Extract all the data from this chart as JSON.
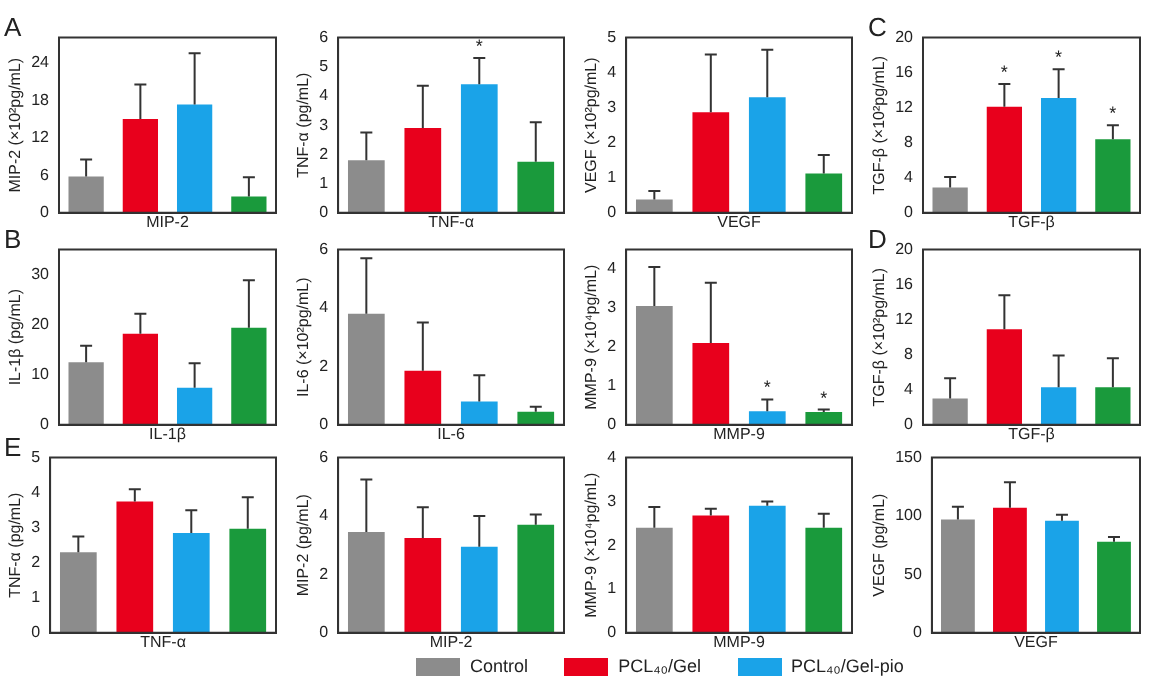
{
  "chart_data": [
    {
      "type": "bar",
      "annotations": [
        "A"
      ],
      "ylabel": "MIP-2 (×10²pg/mL)",
      "xlabel": "MIP-2",
      "categories": [
        null,
        null,
        null,
        null
      ],
      "ylim": [
        0,
        28
      ],
      "yticks": [
        0,
        6,
        12,
        18,
        24
      ],
      "grid": false,
      "series": [
        {
          "color": "#8c8c8c",
          "values": [
            5.8,
            null,
            null,
            null
          ],
          "errors": [
            [
              5.8,
              8.5
            ],
            null,
            null,
            null
          ]
        },
        {
          "color": "#e8001c",
          "values": [
            null,
            15,
            null,
            null
          ],
          "errors": [
            null,
            [
              15,
              20.5
            ],
            null,
            null
          ]
        },
        {
          "color": "#1aa3e8",
          "values": [
            null,
            null,
            17.3,
            null
          ],
          "errors": [
            null,
            null,
            [
              17.3,
              25.5
            ],
            null
          ]
        },
        {
          "color": "#1a9a3c",
          "values": [
            null,
            null,
            null,
            2.6
          ],
          "errors": [
            null,
            null,
            null,
            [
              2.6,
              5.7
            ]
          ]
        }
      ]
    },
    {
      "type": "bar",
      "ylabel": "TNF-α (pg/mL)",
      "xlabel": "TNF-α",
      "categories": [
        null,
        null,
        null,
        null
      ],
      "ylim": [
        0,
        6
      ],
      "yticks": [
        0,
        1,
        2,
        3,
        4,
        5,
        6
      ],
      "grid": false,
      "series": [
        {
          "color": "#8c8c8c",
          "values": [
            1.8,
            null,
            null,
            null
          ],
          "errors": [
            [
              1.8,
              2.75
            ],
            null,
            null,
            null
          ]
        },
        {
          "color": "#e8001c",
          "values": [
            null,
            2.9,
            null,
            null
          ],
          "errors": [
            null,
            [
              2.9,
              4.35
            ],
            null,
            null
          ]
        },
        {
          "color": "#1aa3e8",
          "values": [
            null,
            null,
            4.4,
            null
          ],
          "errors": [
            null,
            null,
            [
              4.4,
              5.3
            ],
            null
          ],
          "value_labels": [
            null,
            null,
            "*",
            null
          ]
        },
        {
          "color": "#1a9a3c",
          "values": [
            null,
            null,
            null,
            1.75
          ],
          "errors": [
            null,
            null,
            null,
            [
              1.75,
              3.1
            ]
          ]
        }
      ]
    },
    {
      "type": "bar",
      "ylabel": "VEGF (×10²pg/mL)",
      "xlabel": "VEGF",
      "categories": [
        null,
        null,
        null,
        null
      ],
      "ylim": [
        0,
        5
      ],
      "yticks": [
        0,
        1,
        2,
        3,
        4,
        5
      ],
      "grid": false,
      "series": [
        {
          "color": "#8c8c8c",
          "values": [
            0.38,
            null,
            null,
            null
          ],
          "errors": [
            [
              0.38,
              0.62
            ],
            null,
            null,
            null
          ]
        },
        {
          "color": "#e8001c",
          "values": [
            null,
            2.87,
            null,
            null
          ],
          "errors": [
            null,
            [
              2.87,
              4.52
            ],
            null,
            null
          ]
        },
        {
          "color": "#1aa3e8",
          "values": [
            null,
            null,
            3.3,
            null
          ],
          "errors": [
            null,
            null,
            [
              3.3,
              4.65
            ],
            null
          ]
        },
        {
          "color": "#1a9a3c",
          "values": [
            null,
            null,
            null,
            1.12
          ],
          "errors": [
            null,
            null,
            null,
            [
              1.12,
              1.65
            ]
          ]
        }
      ]
    },
    {
      "type": "bar",
      "annotations": [
        "C"
      ],
      "ylabel": "TGF-β (×10²pg/mL)",
      "xlabel": "TGF-β",
      "categories": [
        null,
        null,
        null,
        null
      ],
      "ylim": [
        0,
        20
      ],
      "yticks": [
        0,
        4,
        8,
        12,
        16,
        20
      ],
      "grid": false,
      "series": [
        {
          "color": "#8c8c8c",
          "values": [
            2.9,
            null,
            null,
            null
          ],
          "errors": [
            [
              2.9,
              4.1
            ],
            null,
            null,
            null
          ]
        },
        {
          "color": "#e8001c",
          "values": [
            null,
            12.1,
            null,
            null
          ],
          "errors": [
            null,
            [
              12.1,
              14.7
            ],
            null,
            null
          ],
          "value_labels": [
            null,
            "*",
            null,
            null
          ]
        },
        {
          "color": "#1aa3e8",
          "values": [
            null,
            null,
            13.1,
            null
          ],
          "errors": [
            null,
            null,
            [
              13.1,
              16.4
            ],
            null
          ],
          "value_labels": [
            null,
            null,
            "*",
            null
          ]
        },
        {
          "color": "#1a9a3c",
          "values": [
            null,
            null,
            null,
            8.4
          ],
          "errors": [
            null,
            null,
            null,
            [
              8.4,
              10
            ]
          ],
          "value_labels": [
            null,
            null,
            null,
            "*"
          ]
        }
      ]
    },
    {
      "type": "bar",
      "annotations": [
        "B"
      ],
      "ylabel": "IL-1β (pg/mL)",
      "xlabel": "IL-1β",
      "categories": [
        null,
        null,
        null,
        null
      ],
      "ylim": [
        0,
        35
      ],
      "yticks": [
        0,
        10,
        20,
        30
      ],
      "grid": false,
      "series": [
        {
          "color": "#8c8c8c",
          "values": [
            12.5,
            null,
            null,
            null
          ],
          "errors": [
            [
              12.5,
              15.8
            ],
            null,
            null,
            null
          ]
        },
        {
          "color": "#e8001c",
          "values": [
            null,
            18.2,
            null,
            null
          ],
          "errors": [
            null,
            [
              18.2,
              22.2
            ],
            null,
            null
          ]
        },
        {
          "color": "#1aa3e8",
          "values": [
            null,
            null,
            7.4,
            null
          ],
          "errors": [
            null,
            null,
            [
              7.4,
              12.3
            ],
            null
          ]
        },
        {
          "color": "#1a9a3c",
          "values": [
            null,
            null,
            null,
            19.4
          ],
          "errors": [
            null,
            null,
            null,
            [
              19.4,
              28.9
            ]
          ]
        }
      ]
    },
    {
      "type": "bar",
      "ylabel": "IL-6 (×10²pg/mL)",
      "xlabel": "IL-6",
      "categories": [
        null,
        null,
        null,
        null
      ],
      "ylim": [
        0,
        6
      ],
      "yticks": [
        0,
        2,
        4,
        6
      ],
      "grid": false,
      "series": [
        {
          "color": "#8c8c8c",
          "values": [
            3.8,
            null,
            null,
            null
          ],
          "errors": [
            [
              3.8,
              5.7
            ],
            null,
            null,
            null
          ]
        },
        {
          "color": "#e8001c",
          "values": [
            null,
            1.85,
            null,
            null
          ],
          "errors": [
            null,
            [
              1.85,
              3.5
            ],
            null,
            null
          ]
        },
        {
          "color": "#1aa3e8",
          "values": [
            null,
            null,
            0.8,
            null
          ],
          "errors": [
            null,
            null,
            [
              0.8,
              1.7
            ],
            null
          ]
        },
        {
          "color": "#1a9a3c",
          "values": [
            null,
            null,
            null,
            0.45
          ],
          "errors": [
            null,
            null,
            null,
            [
              0.45,
              0.62
            ]
          ]
        }
      ]
    },
    {
      "type": "bar",
      "ylabel": "MMP-9 (×10⁴pg/mL)",
      "xlabel": "MMP-9",
      "categories": [
        null,
        null,
        null,
        null
      ],
      "ylim": [
        0,
        4.5
      ],
      "yticks": [
        0,
        1,
        2,
        3,
        4
      ],
      "grid": false,
      "series": [
        {
          "color": "#8c8c8c",
          "values": [
            3.05,
            null,
            null,
            null
          ],
          "errors": [
            [
              3.05,
              4.05
            ],
            null,
            null,
            null
          ]
        },
        {
          "color": "#e8001c",
          "values": [
            null,
            2.1,
            null,
            null
          ],
          "errors": [
            null,
            [
              2.1,
              3.65
            ],
            null,
            null
          ]
        },
        {
          "color": "#1aa3e8",
          "values": [
            null,
            null,
            0.35,
            null
          ],
          "errors": [
            null,
            null,
            [
              0.35,
              0.65
            ],
            null
          ],
          "value_labels": [
            null,
            null,
            "*",
            null
          ]
        },
        {
          "color": "#1a9a3c",
          "values": [
            null,
            null,
            null,
            0.33
          ],
          "errors": [
            null,
            null,
            null,
            [
              0.33,
              0.39
            ]
          ],
          "value_labels": [
            null,
            null,
            null,
            "*"
          ]
        }
      ]
    },
    {
      "type": "bar",
      "annotations": [
        "D"
      ],
      "ylabel": "TGF-β (×10²pg/mL)",
      "xlabel": "TGF-β",
      "categories": [
        null,
        null,
        null,
        null
      ],
      "ylim": [
        0,
        20
      ],
      "yticks": [
        0,
        4,
        8,
        12,
        16,
        20
      ],
      "grid": false,
      "series": [
        {
          "color": "#8c8c8c",
          "values": [
            3,
            null,
            null,
            null
          ],
          "errors": [
            [
              3,
              5.3
            ],
            null,
            null,
            null
          ]
        },
        {
          "color": "#e8001c",
          "values": [
            null,
            10.9,
            null,
            null
          ],
          "errors": [
            null,
            [
              10.9,
              14.8
            ],
            null,
            null
          ]
        },
        {
          "color": "#1aa3e8",
          "values": [
            null,
            null,
            4.3,
            null
          ],
          "errors": [
            null,
            null,
            [
              4.3,
              7.9
            ],
            null
          ]
        },
        {
          "color": "#1a9a3c",
          "values": [
            null,
            null,
            null,
            4.3
          ],
          "errors": [
            null,
            null,
            null,
            [
              4.3,
              7.6
            ]
          ]
        }
      ]
    },
    {
      "type": "bar",
      "annotations": [
        "E"
      ],
      "ylabel": "TNF-α (pg/mL)",
      "xlabel": "TNF-α",
      "categories": [
        null,
        null,
        null,
        null
      ],
      "ylim": [
        0,
        5
      ],
      "yticks": [
        0,
        1,
        2,
        3,
        4,
        5
      ],
      "grid": false,
      "series": [
        {
          "color": "#8c8c8c",
          "values": [
            2.3,
            null,
            null,
            null
          ],
          "errors": [
            [
              2.3,
              2.75
            ],
            null,
            null,
            null
          ]
        },
        {
          "color": "#e8001c",
          "values": [
            null,
            3.75,
            null,
            null
          ],
          "errors": [
            null,
            [
              3.75,
              4.1
            ],
            null,
            null
          ]
        },
        {
          "color": "#1aa3e8",
          "values": [
            null,
            null,
            2.85,
            null
          ],
          "errors": [
            null,
            null,
            [
              2.85,
              3.5
            ],
            null
          ]
        },
        {
          "color": "#1a9a3c",
          "values": [
            null,
            null,
            null,
            2.97
          ],
          "errors": [
            null,
            null,
            null,
            [
              2.97,
              3.87
            ]
          ]
        }
      ]
    },
    {
      "type": "bar",
      "legend": "bottom",
      "ylabel": "MIP-2 (pg/mL)",
      "xlabel": "MIP-2",
      "categories": [
        null,
        null,
        null,
        null
      ],
      "ylim": [
        0,
        6
      ],
      "yticks": [
        0,
        2,
        4,
        6
      ],
      "grid": false,
      "series": [
        {
          "name": "Control",
          "color": "#8c8c8c",
          "values": [
            3.45,
            null,
            null,
            null
          ],
          "errors": [
            [
              3.45,
              5.25
            ],
            null,
            null,
            null
          ]
        },
        {
          "name": "PCL₄₀/Gel",
          "color": "#e8001c",
          "values": [
            null,
            3.25,
            null,
            null
          ],
          "errors": [
            null,
            [
              3.25,
              4.3
            ],
            null,
            null
          ]
        },
        {
          "name": "PCL₄₀/Gel-pio",
          "color": "#1aa3e8",
          "values": [
            null,
            null,
            2.95,
            null
          ],
          "errors": [
            null,
            null,
            [
              2.95,
              4
            ],
            null
          ]
        },
        {
          "color": "#1a9a3c",
          "values": [
            null,
            null,
            null,
            3.7
          ],
          "errors": [
            null,
            null,
            null,
            [
              3.7,
              4.05
            ]
          ]
        }
      ]
    },
    {
      "type": "bar",
      "ylabel": "MMP-9 (×10⁴pg/mL)",
      "xlabel": "MMP-9",
      "categories": [
        null,
        null,
        null,
        null
      ],
      "ylim": [
        0,
        4
      ],
      "yticks": [
        0,
        1,
        2,
        3,
        4
      ],
      "grid": false,
      "series": [
        {
          "color": "#8c8c8c",
          "values": [
            2.4,
            null,
            null,
            null
          ],
          "errors": [
            [
              2.4,
              2.87
            ],
            null,
            null,
            null
          ]
        },
        {
          "color": "#e8001c",
          "values": [
            null,
            2.68,
            null,
            null
          ],
          "errors": [
            null,
            [
              2.68,
              2.83
            ],
            null,
            null
          ]
        },
        {
          "color": "#1aa3e8",
          "values": [
            null,
            null,
            2.9,
            null
          ],
          "errors": [
            null,
            null,
            [
              2.9,
              3
            ],
            null
          ]
        },
        {
          "color": "#1a9a3c",
          "values": [
            null,
            null,
            null,
            2.4
          ],
          "errors": [
            null,
            null,
            null,
            [
              2.4,
              2.72
            ]
          ]
        }
      ]
    },
    {
      "type": "bar",
      "ylabel": "VEGF (pg/mL)",
      "xlabel": "VEGF",
      "categories": [
        null,
        null,
        null,
        null
      ],
      "ylim": [
        0,
        150
      ],
      "yticks": [
        0,
        50,
        100,
        150
      ],
      "grid": false,
      "series": [
        {
          "color": "#8c8c8c",
          "values": [
            97,
            null,
            null,
            null
          ],
          "errors": [
            [
              97,
              108
            ],
            null,
            null,
            null
          ]
        },
        {
          "color": "#e8001c",
          "values": [
            null,
            107,
            null,
            null
          ],
          "errors": [
            null,
            [
              107,
              129
            ],
            null,
            null
          ]
        },
        {
          "color": "#1aa3e8",
          "values": [
            null,
            null,
            96,
            null
          ],
          "errors": [
            null,
            null,
            [
              96,
              101
            ],
            null
          ]
        },
        {
          "color": "#1a9a3c",
          "values": [
            null,
            null,
            null,
            78
          ],
          "errors": [
            null,
            null,
            null,
            [
              78,
              82
            ]
          ]
        }
      ]
    }
  ]
}
